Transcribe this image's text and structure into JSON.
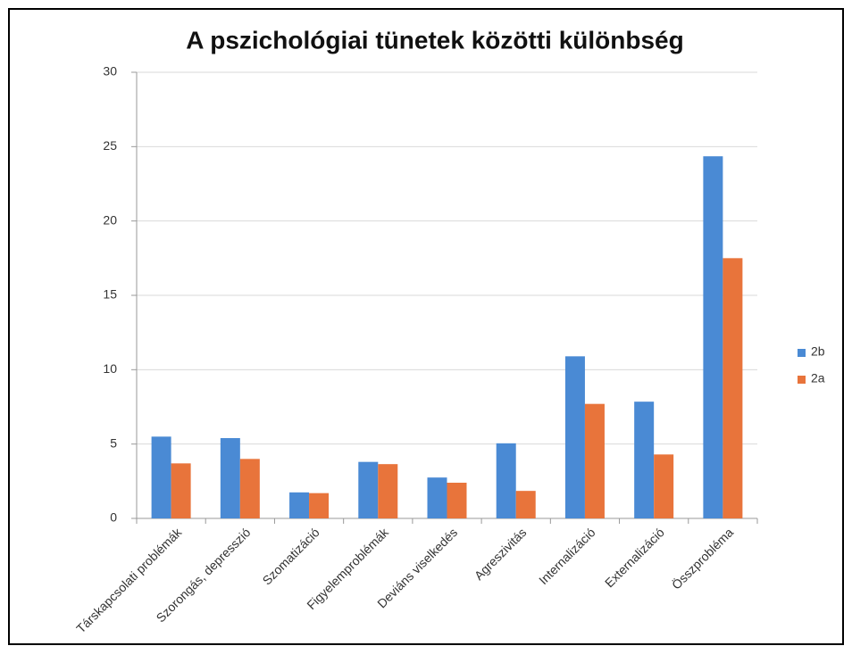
{
  "chart_data": {
    "type": "bar",
    "title": "A pszichológiai tünetek közötti különbség",
    "categories": [
      "Társkapcsolati problémák",
      "Szorongás, depresszió",
      "Szomatizáció",
      "Figyelemproblémák",
      "Deviáns viselkedés",
      "Agreszivitás",
      "Internalizáció",
      "Externalizáció",
      "Összprobléma"
    ],
    "series": [
      {
        "name": "2b",
        "color": "#4a8ad4",
        "values": [
          5.5,
          5.4,
          1.75,
          3.8,
          2.75,
          5.05,
          10.9,
          7.85,
          24.35
        ]
      },
      {
        "name": "2a",
        "color": "#e8743b",
        "values": [
          3.7,
          4.0,
          1.7,
          3.65,
          2.4,
          1.85,
          7.7,
          4.3,
          17.5
        ]
      }
    ],
    "ylim": [
      0,
      30
    ],
    "yticks": [
      0,
      5,
      10,
      15,
      20,
      25,
      30
    ],
    "grid": true,
    "legend": "right"
  }
}
